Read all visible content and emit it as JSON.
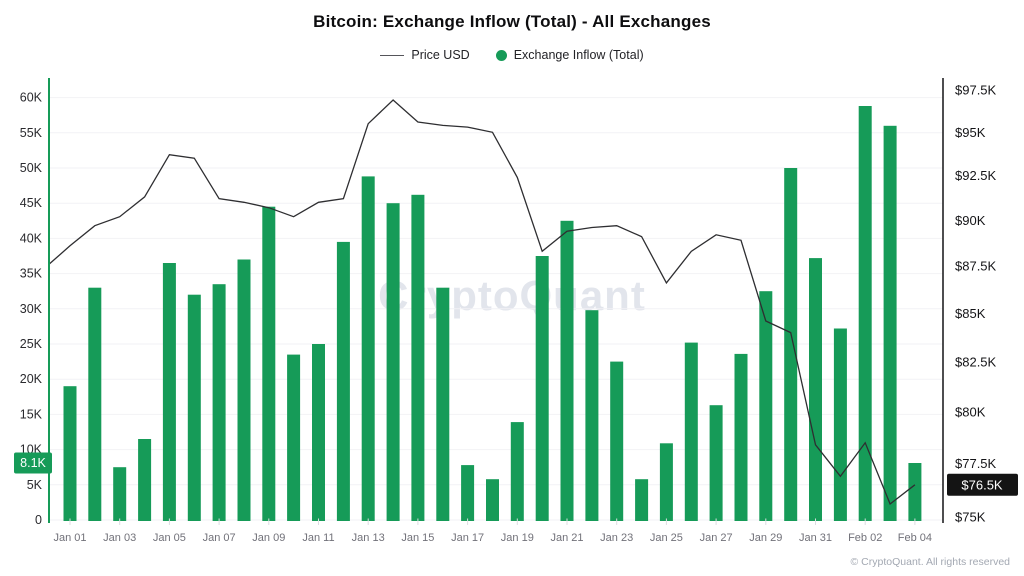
{
  "title": "Bitcoin: Exchange Inflow (Total) - All Exchanges",
  "legend": [
    {
      "label": "Price USD",
      "type": "line",
      "color": "#55555a"
    },
    {
      "label": "Exchange Inflow (Total)",
      "type": "dot",
      "color": "#169B58"
    }
  ],
  "watermark": "CryptoQuant",
  "footer": "© CryptoQuant. All rights reserved",
  "colors": {
    "bar_green": "#169B58",
    "left_axis_line": "#169B58",
    "price_line": "#2E2E31",
    "right_axis_line": "#141417",
    "gridline": "#F2F2F5",
    "left_tick_text": "#2A2A2E",
    "right_tick_text": "#141417",
    "x_label_text": "#717179",
    "left_badge_bg": "#169B58",
    "right_badge_bg": "#141414",
    "badge_text": "#FFFFFF",
    "x_tick_mark": "#DCDCE1"
  },
  "chart_data": {
    "type": "bar",
    "title": "Bitcoin: Exchange Inflow (Total) - All Exchanges",
    "legend_position": "top",
    "grid": "horizontal-faint",
    "categories": [
      "Jan 01",
      "Jan 02",
      "Jan 03",
      "Jan 04",
      "Jan 05",
      "Jan 06",
      "Jan 07",
      "Jan 08",
      "Jan 09",
      "Jan 10",
      "Jan 11",
      "Jan 12",
      "Jan 13",
      "Jan 14",
      "Jan 15",
      "Jan 16",
      "Jan 17",
      "Jan 18",
      "Jan 19",
      "Jan 20",
      "Jan 21",
      "Jan 22",
      "Jan 23",
      "Jan 24",
      "Jan 25",
      "Jan 26",
      "Jan 27",
      "Jan 28",
      "Jan 29",
      "Jan 30",
      "Jan 31",
      "Feb 01",
      "Feb 02",
      "Feb 03",
      "Feb 04"
    ],
    "x_labels_shown": [
      "Jan 01",
      "Jan 03",
      "Jan 05",
      "Jan 07",
      "Jan 09",
      "Jan 11",
      "Jan 13",
      "Jan 15",
      "Jan 17",
      "Jan 19",
      "Jan 21",
      "Jan 23",
      "Jan 25",
      "Jan 27",
      "Jan 29",
      "Jan 31",
      "Feb 02",
      "Feb 04"
    ],
    "series": [
      {
        "name": "Exchange Inflow (Total)",
        "type": "bar",
        "axis": "left",
        "unit": "K BTC",
        "values": [
          19.0,
          33.0,
          7.5,
          11.5,
          36.5,
          32.0,
          33.5,
          37.0,
          44.5,
          23.5,
          25.0,
          39.5,
          48.8,
          45.0,
          46.2,
          33.0,
          7.8,
          5.8,
          13.9,
          37.5,
          42.5,
          29.8,
          22.5,
          5.8,
          10.9,
          25.2,
          16.3,
          23.6,
          32.5,
          50.0,
          37.2,
          27.2,
          58.8,
          56.0,
          8.1
        ]
      },
      {
        "name": "Price USD",
        "type": "line",
        "axis": "right",
        "unit": "USD (thousands)",
        "edge_start_value": 87.6,
        "values": [
          88.6,
          89.7,
          90.2,
          91.3,
          93.7,
          93.5,
          91.2,
          91.0,
          90.7,
          90.2,
          91.0,
          91.2,
          95.5,
          96.9,
          95.6,
          95.4,
          95.3,
          95.0,
          92.4,
          88.3,
          89.4,
          89.6,
          89.7,
          89.1,
          86.6,
          88.3,
          89.2,
          88.9,
          84.6,
          84.0,
          78.4,
          76.9,
          78.5,
          75.6,
          76.5
        ]
      }
    ],
    "left_axis": {
      "min": 0,
      "max": 60,
      "scale": "linear",
      "tick_values": [
        0,
        5,
        10,
        15,
        20,
        25,
        30,
        35,
        40,
        45,
        50,
        55,
        60
      ],
      "tick_labels": [
        "0",
        "5K",
        "10K",
        "15K",
        "20K",
        "25K",
        "30K",
        "35K",
        "40K",
        "45K",
        "50K",
        "55K",
        "60K"
      ],
      "badge": {
        "text": "8.1K",
        "value": 8.1
      }
    },
    "right_axis": {
      "min": 75,
      "max": 97.5,
      "scale": "log",
      "tick_values": [
        75,
        77.5,
        80,
        82.5,
        85,
        87.5,
        90,
        92.5,
        95,
        97.5
      ],
      "tick_labels": [
        "$75K",
        "$77.5K",
        "$80K",
        "$82.5K",
        "$85K",
        "$87.5K",
        "$90K",
        "$92.5K",
        "$95K",
        "$97.5K"
      ],
      "badge": {
        "text": "$76.5K",
        "value": 76.5
      }
    }
  }
}
